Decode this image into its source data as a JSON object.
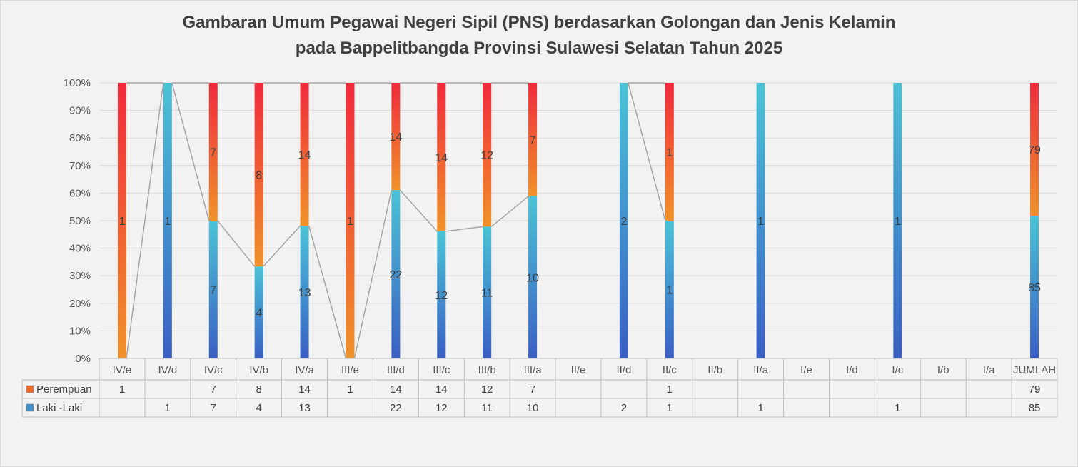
{
  "chart_data": {
    "type": "bar",
    "stacked": "percent",
    "title_lines": [
      "Gambaran Umum Pegawai Negeri Sipil (PNS) berdasarkan Golongan dan Jenis Kelamin",
      "pada Bappelitbangda Provinsi Sulawesi Selatan Tahun 2025"
    ],
    "categories": [
      "IV/e",
      "IV/d",
      "IV/c",
      "IV/b",
      "IV/a",
      "III/e",
      "III/d",
      "III/c",
      "III/b",
      "III/a",
      "II/e",
      "II/d",
      "II/c",
      "II/b",
      "II/a",
      "I/e",
      "I/d",
      "I/c",
      "I/b",
      "I/a",
      "JUMLAH"
    ],
    "series": [
      {
        "name": "Laki -Laki",
        "values": [
          null,
          1,
          7,
          4,
          13,
          null,
          22,
          12,
          11,
          10,
          null,
          2,
          1,
          null,
          1,
          null,
          null,
          1,
          null,
          null,
          85
        ],
        "color_top": "#4bc3d6",
        "color_bottom": "#3a5fc4"
      },
      {
        "name": "Perempuan",
        "values": [
          1,
          null,
          7,
          8,
          14,
          1,
          14,
          14,
          12,
          7,
          null,
          null,
          1,
          null,
          null,
          null,
          null,
          null,
          null,
          null,
          79
        ],
        "color_top": "#f02a3c",
        "color_bottom": "#f0922a"
      }
    ],
    "ylim": [
      0,
      100
    ],
    "yticks": [
      "0%",
      "10%",
      "20%",
      "30%",
      "40%",
      "50%",
      "60%",
      "70%",
      "80%",
      "90%",
      "100%"
    ],
    "data_table": true,
    "grid": true
  }
}
